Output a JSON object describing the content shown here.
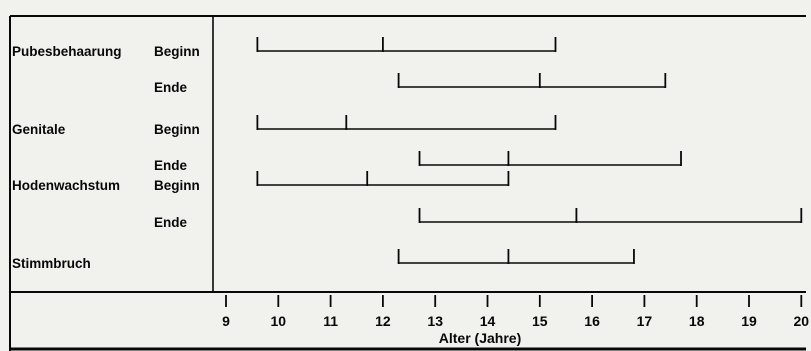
{
  "chart_data": {
    "type": "range",
    "xlabel": "Alter (Jahre)",
    "xlim": [
      9,
      20
    ],
    "x_ticks": [
      9,
      10,
      11,
      12,
      13,
      14,
      15,
      16,
      17,
      18,
      19,
      20
    ],
    "grid": false,
    "rows": [
      {
        "group": "Pubesbehaarung",
        "stage": "Beginn",
        "start": 9.6,
        "median": 12.0,
        "end": 15.3
      },
      {
        "group": "",
        "stage": "Ende",
        "start": 12.3,
        "median": 15.0,
        "end": 17.4
      },
      {
        "group": "Genitale",
        "stage": "Beginn",
        "start": 9.6,
        "median": 11.3,
        "end": 15.3
      },
      {
        "group": "",
        "stage": "Ende",
        "start": 12.7,
        "median": 14.4,
        "end": 17.7
      },
      {
        "group": "Hodenwachstum",
        "stage": "Beginn",
        "start": 9.6,
        "median": 11.7,
        "end": 14.4
      },
      {
        "group": "",
        "stage": "Ende",
        "start": 12.7,
        "median": 15.7,
        "end": 20.0
      },
      {
        "group": "Stimmbruch",
        "stage": "",
        "start": 12.3,
        "median": 14.4,
        "end": 16.8
      }
    ]
  },
  "colors": {
    "paper": "#f1f1ee",
    "ink": "#111111"
  }
}
